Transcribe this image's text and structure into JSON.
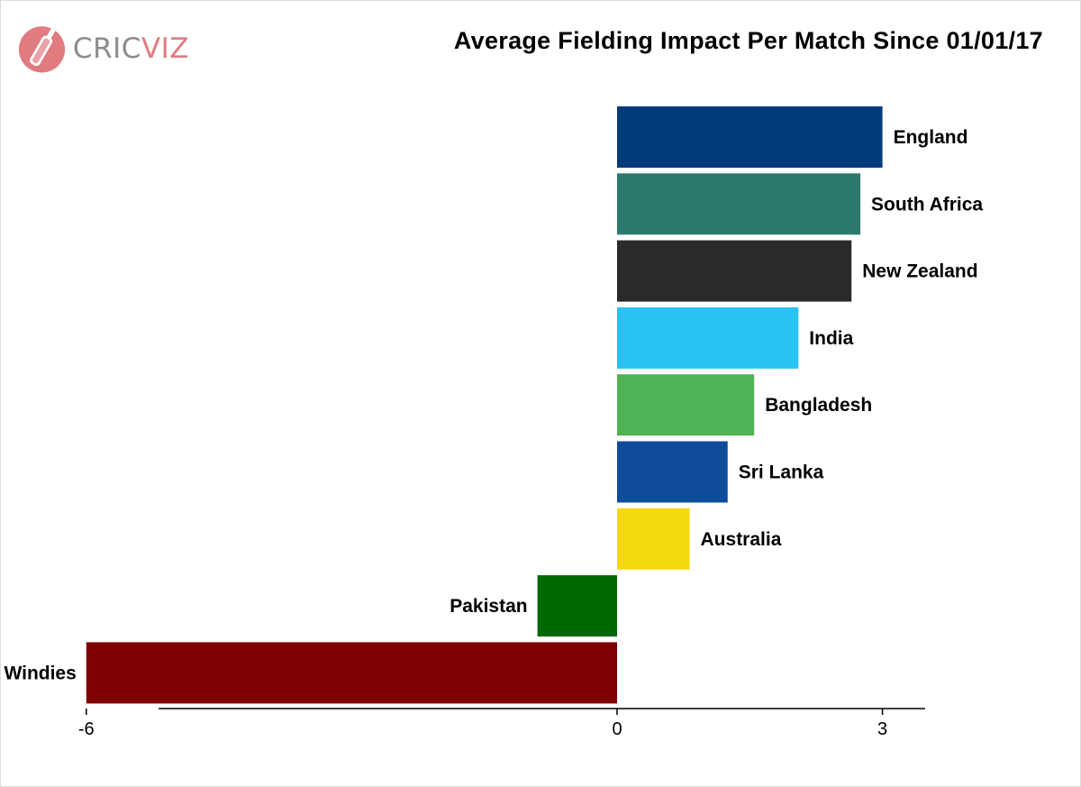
{
  "logo": {
    "brand_part1": "CRIC",
    "brand_part2": "VIZ",
    "color_part1": "#8c8c8c",
    "color_part2": "#e07b80"
  },
  "chart_data": {
    "type": "bar",
    "orientation": "horizontal",
    "title": "Average Fielding Impact Per Match Since 01/01/17",
    "xlabel": "",
    "ylabel": "",
    "xlim": [
      -6,
      3.5
    ],
    "xticks": [
      -6,
      0,
      3
    ],
    "grid": false,
    "legend": "none",
    "categories": [
      "England",
      "South Africa",
      "New Zealand",
      "India",
      "Bangladesh",
      "Sri Lanka",
      "Australia",
      "Pakistan",
      "Windies"
    ],
    "values": [
      3.0,
      2.75,
      2.65,
      2.05,
      1.55,
      1.25,
      0.82,
      -0.9,
      -6.0
    ],
    "colors": [
      "#033a7a",
      "#2b7a6e",
      "#2b2a2b",
      "#29c2f2",
      "#4fb356",
      "#0f4d9c",
      "#f5d90f",
      "#006800",
      "#7f0000"
    ]
  }
}
